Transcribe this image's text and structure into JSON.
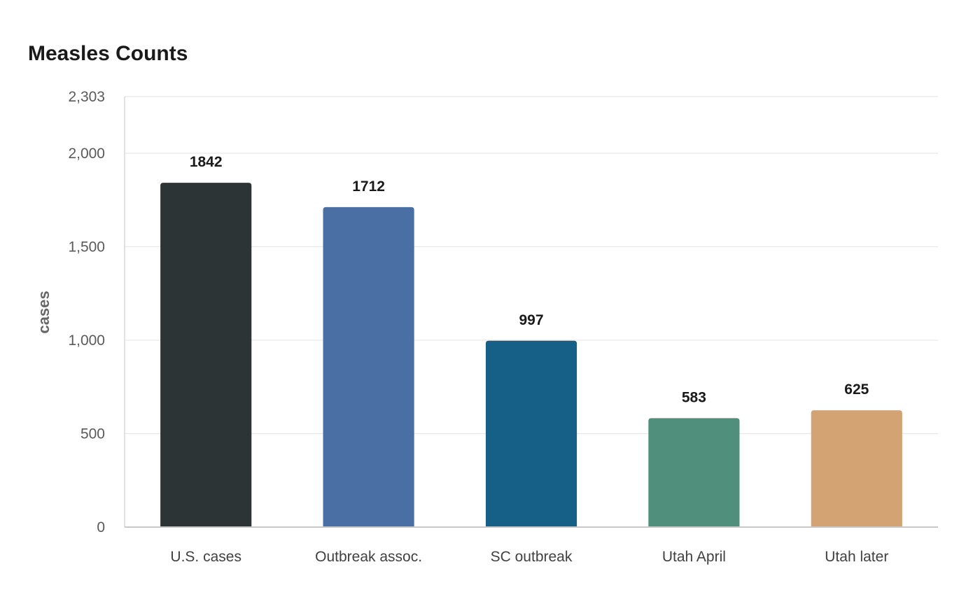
{
  "chart_data": {
    "type": "bar",
    "title": "Measles Counts",
    "xlabel": "",
    "ylabel": "cases",
    "categories": [
      "U.S. cases",
      "Outbreak assoc.",
      "SC outbreak",
      "Utah April",
      "Utah later"
    ],
    "values": [
      1842,
      1712,
      997,
      583,
      625
    ],
    "value_labels": [
      "1842",
      "1712",
      "997",
      "583",
      "625"
    ],
    "colors": [
      "#2d3436",
      "#4a6fa5",
      "#166088",
      "#4f8f7c",
      "#d4a373"
    ],
    "ylim": [
      0,
      2303
    ],
    "yticks": [
      0,
      500,
      1000,
      1500,
      2000,
      2303
    ],
    "ytick_labels": [
      "0",
      "500",
      "1,000",
      "1,500",
      "2,000",
      "2,303"
    ],
    "grid": true,
    "legend": "none"
  }
}
